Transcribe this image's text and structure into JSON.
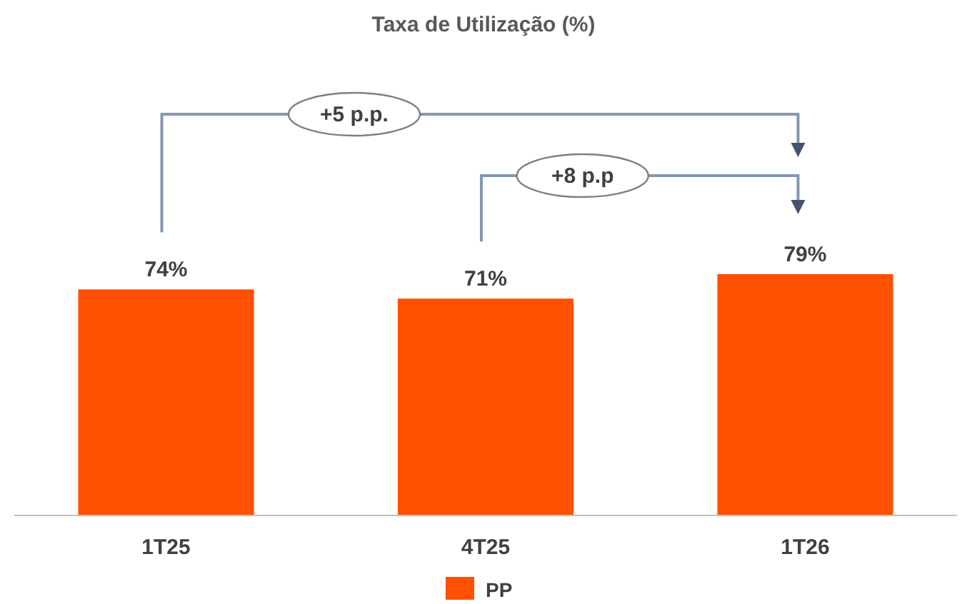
{
  "chart_data": {
    "type": "bar",
    "title": "Taxa de Utilização (%)",
    "categories": [
      "1T25",
      "4T25",
      "1T26"
    ],
    "series": [
      {
        "name": "PP",
        "color": "#ff5000",
        "values": [
          74,
          71,
          79
        ],
        "value_labels": [
          "74%",
          "71%",
          "79%"
        ]
      }
    ],
    "annotations": [
      "+5 p.p.",
      "+8 p.p"
    ],
    "legend": "bottom"
  }
}
